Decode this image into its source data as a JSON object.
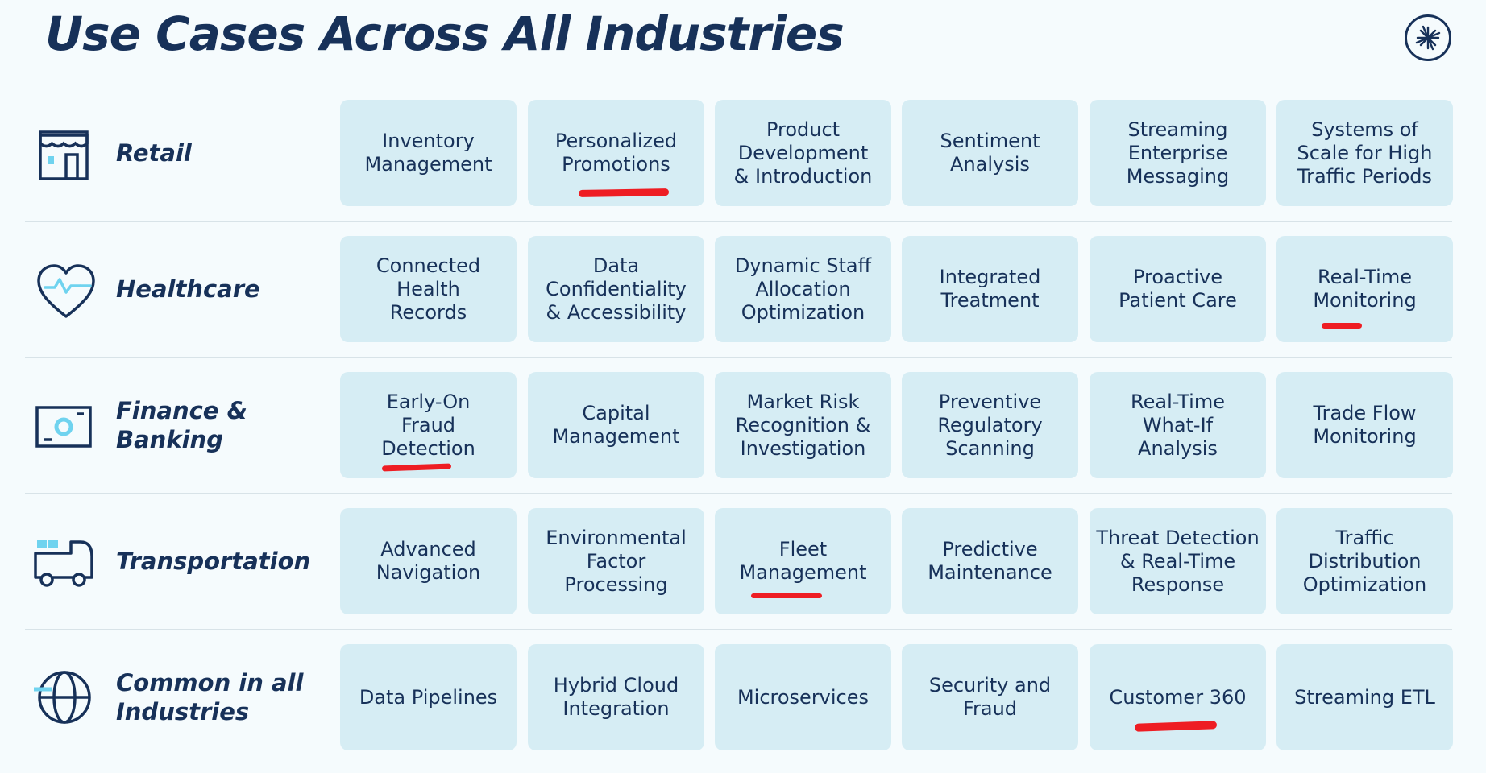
{
  "title": "Use Cases Across All Industries",
  "colors": {
    "accent": "#ee1d23",
    "card": "#d6edf4",
    "text": "#173159",
    "icon_highlight": "#6fd3ef"
  },
  "rows": [
    {
      "label": "Retail",
      "icon": "storefront-icon",
      "cases": [
        "Inventory\nManagement",
        "Personalized\nPromotions",
        "Product\nDevelopment\n& Introduction",
        "Sentiment\nAnalysis",
        "Streaming\nEnterprise\nMessaging",
        "Systems of\nScale for High\nTraffic Periods"
      ]
    },
    {
      "label": "Healthcare",
      "icon": "heart-pulse-icon",
      "cases": [
        "Connected\nHealth\nRecords",
        "Data\nConfidentiality\n& Accessibility",
        "Dynamic Staff\nAllocation\nOptimization",
        "Integrated\nTreatment",
        "Proactive\nPatient Care",
        "Real-Time\nMonitoring"
      ]
    },
    {
      "label": "Finance &\nBanking",
      "icon": "banknote-icon",
      "cases": [
        "Early-On\nFraud\nDetection",
        "Capital\nManagement",
        "Market Risk\nRecognition &\nInvestigation",
        "Preventive\nRegulatory\nScanning",
        "Real-Time\nWhat-If\nAnalysis",
        "Trade Flow\nMonitoring"
      ]
    },
    {
      "label": "Transportation",
      "icon": "truck-icon",
      "cases": [
        "Advanced\nNavigation",
        "Environmental\nFactor\nProcessing",
        "Fleet\nManagement",
        "Predictive\nMaintenance",
        "Threat Detection\n& Real-Time\nResponse",
        "Traffic\nDistribution\nOptimization"
      ]
    },
    {
      "label": "Common in all\nIndustries",
      "icon": "globe-icon",
      "cases": [
        "Data Pipelines",
        "Hybrid Cloud\nIntegration",
        "Microservices",
        "Security and\nFraud",
        "Customer 360",
        "Streaming ETL"
      ]
    }
  ]
}
